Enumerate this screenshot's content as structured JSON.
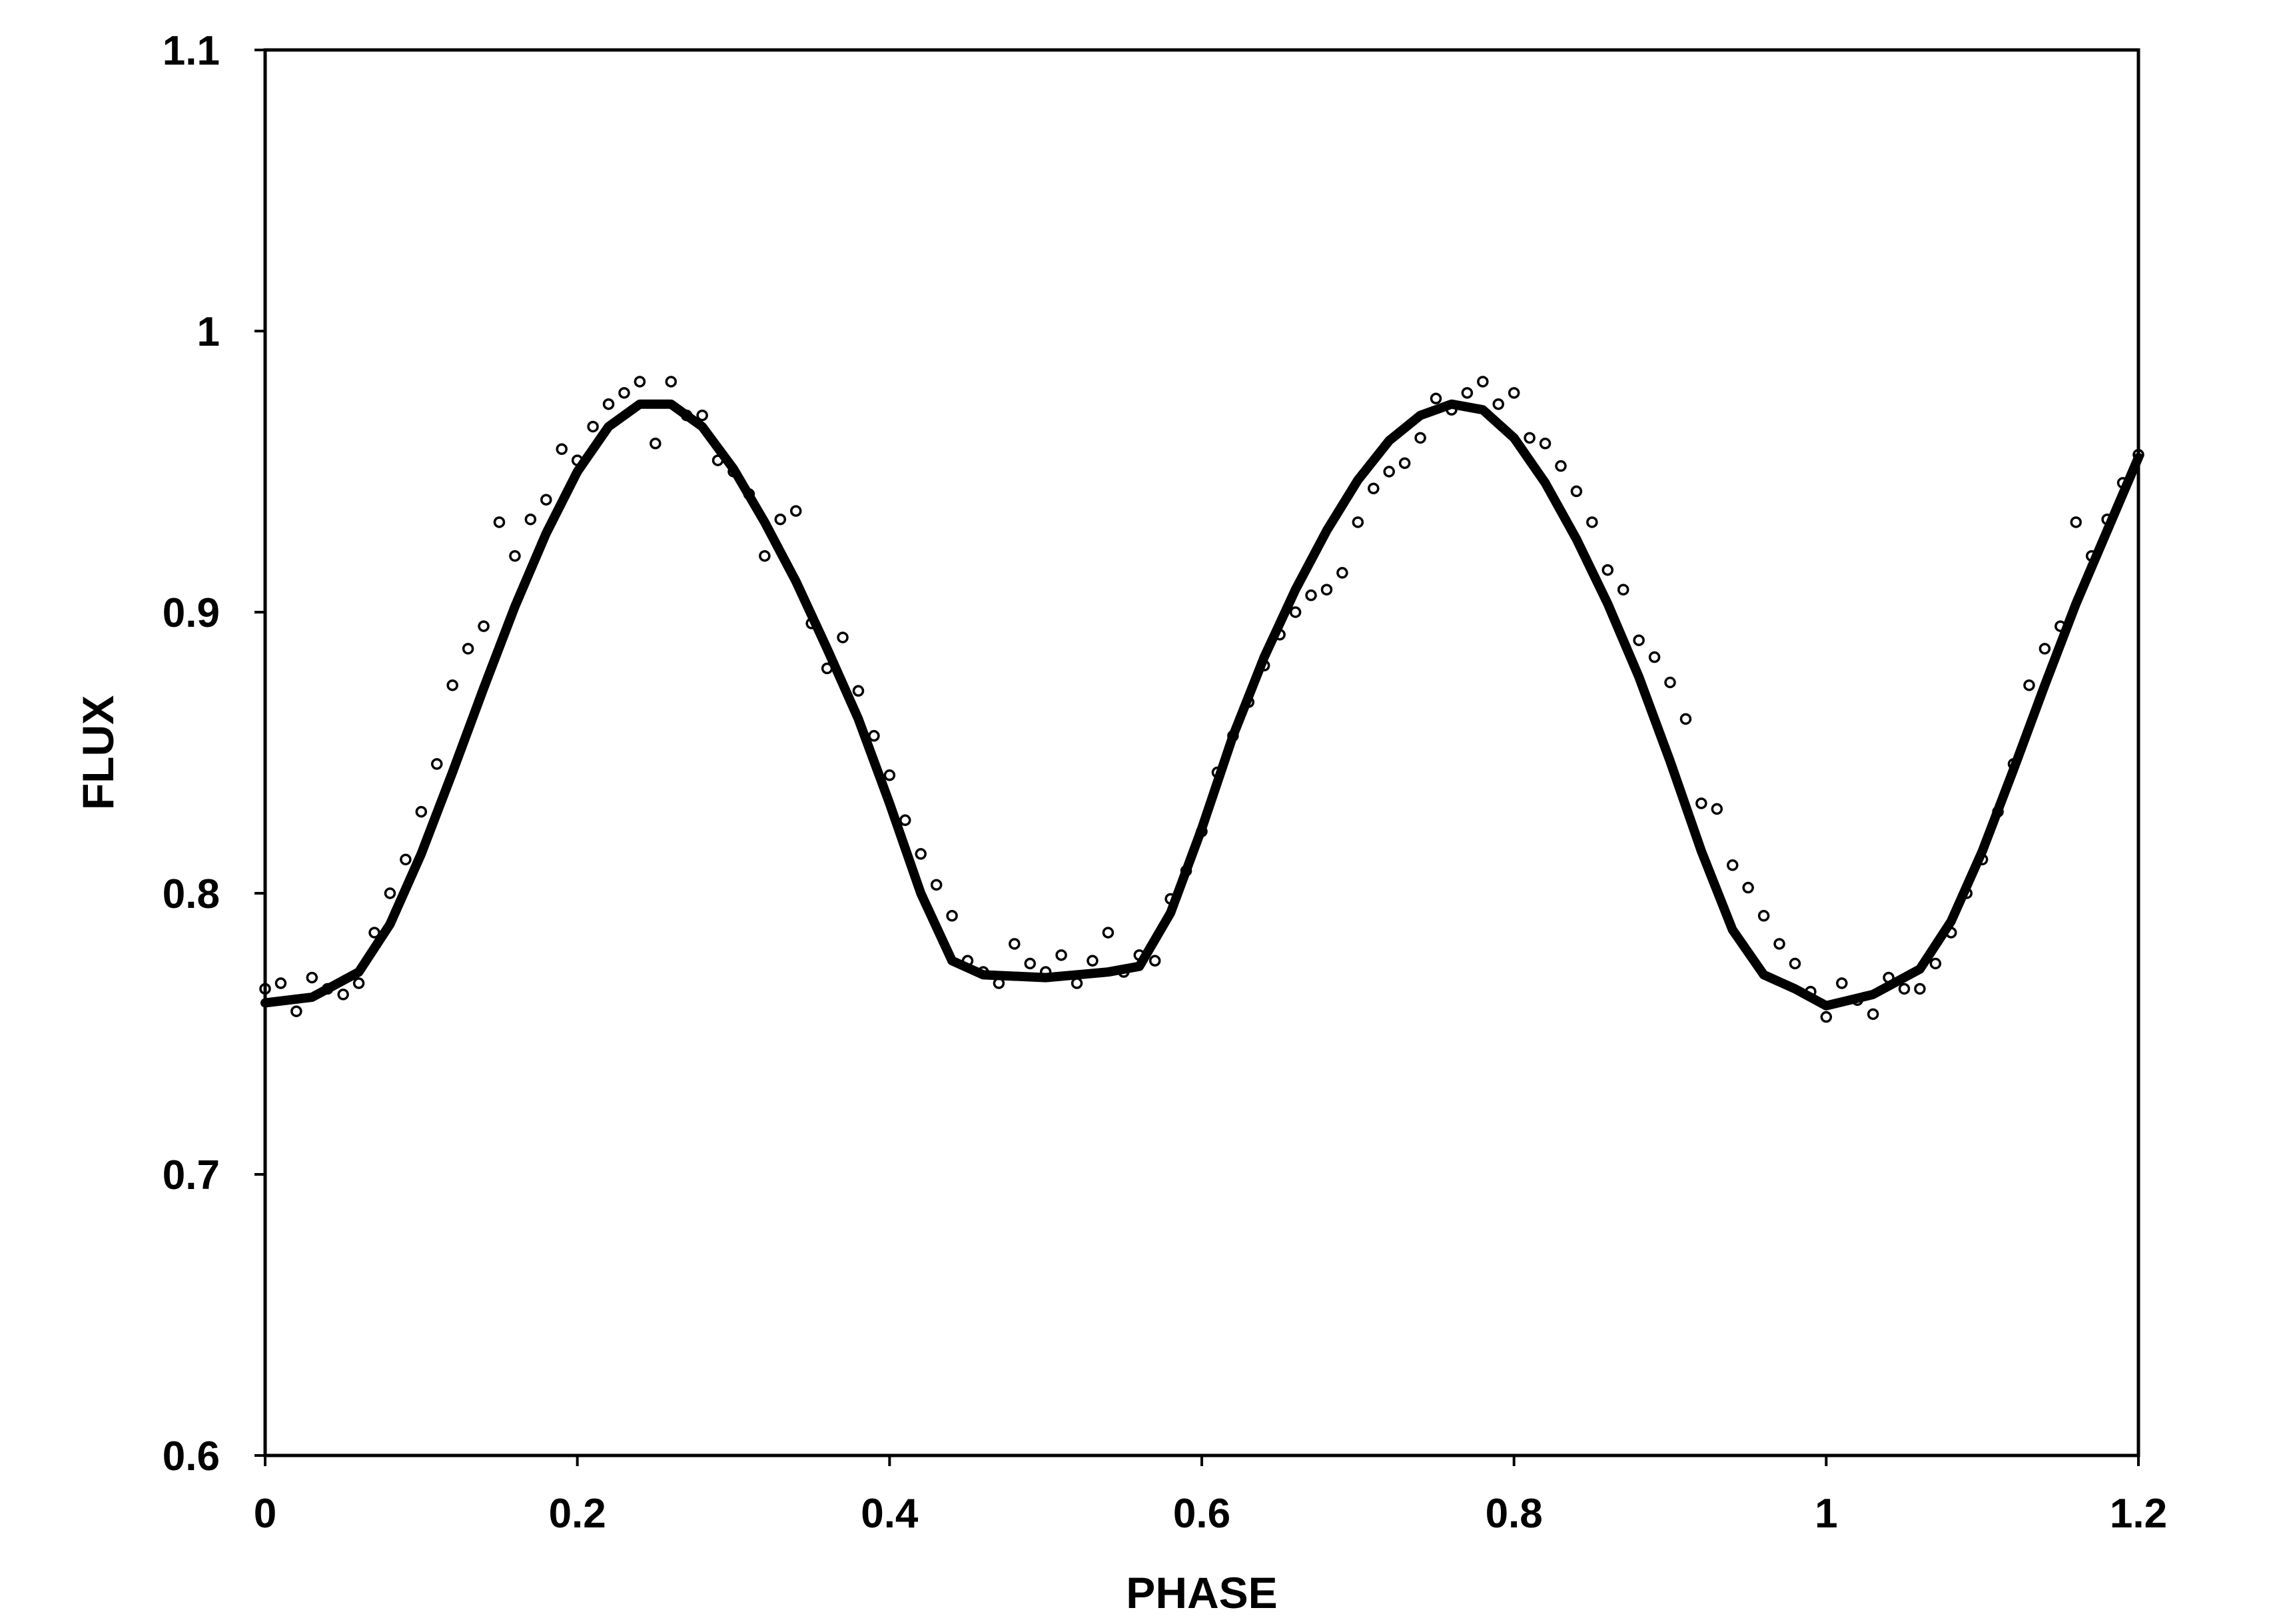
{
  "chart_data": {
    "type": "scatter",
    "title": "",
    "xlabel": "PHASE",
    "ylabel": "FLUX",
    "xlim": [
      0,
      1.2
    ],
    "ylim": [
      0.6,
      1.1
    ],
    "x_ticks": [
      0,
      0.2,
      0.4,
      0.6,
      0.8,
      1,
      1.2
    ],
    "x_tick_labels": [
      "0",
      "0.2",
      "0.4",
      "0.6",
      "0.8",
      "1",
      "1.2"
    ],
    "y_ticks": [
      0.6,
      0.7,
      0.8,
      0.9,
      1,
      1.1
    ],
    "y_tick_labels": [
      "0.6",
      "0.7",
      "0.8",
      "0.9",
      "1",
      "1.1"
    ],
    "grid": false,
    "legend": "none",
    "colors": {
      "marks": "#000000",
      "background": "#ffffff"
    },
    "series": [
      {
        "style": "open-circle markers",
        "x": [
          0.0,
          0.01,
          0.02,
          0.03,
          0.04,
          0.05,
          0.06,
          0.07,
          0.08,
          0.09,
          0.1,
          0.11,
          0.12,
          0.13,
          0.14,
          0.15,
          0.16,
          0.17,
          0.18,
          0.19,
          0.2,
          0.21,
          0.22,
          0.23,
          0.24,
          0.25,
          0.26,
          0.27,
          0.28,
          0.29,
          0.3,
          0.31,
          0.32,
          0.33,
          0.34,
          0.35,
          0.36,
          0.37,
          0.38,
          0.39,
          0.4,
          0.41,
          0.42,
          0.43,
          0.44,
          0.45,
          0.46,
          0.47,
          0.48,
          0.49,
          0.5,
          0.51,
          0.52,
          0.53,
          0.54,
          0.55,
          0.56,
          0.57,
          0.58,
          0.59,
          0.6,
          0.61,
          0.62,
          0.63,
          0.64,
          0.65,
          0.66,
          0.67,
          0.68,
          0.69,
          0.7,
          0.71,
          0.72,
          0.73,
          0.74,
          0.75,
          0.76,
          0.77,
          0.78,
          0.79,
          0.8,
          0.81,
          0.82,
          0.83,
          0.84,
          0.85,
          0.86,
          0.87,
          0.88,
          0.89,
          0.9,
          0.91,
          0.92,
          0.93,
          0.94,
          0.95,
          0.96,
          0.97,
          0.98,
          0.99,
          1.0,
          1.01,
          1.02,
          1.03,
          1.04,
          1.05,
          1.06,
          1.07,
          1.08,
          1.09,
          1.1,
          1.11,
          1.12,
          1.13,
          1.14,
          1.15,
          1.16,
          1.17,
          1.18,
          1.19,
          1.2
        ],
        "y": [
          0.766,
          0.768,
          0.758,
          0.77,
          0.766,
          0.764,
          0.768,
          0.786,
          0.8,
          0.812,
          0.829,
          0.846,
          0.874,
          0.887,
          0.895,
          0.932,
          0.92,
          0.933,
          0.94,
          0.958,
          0.954,
          0.966,
          0.974,
          0.978,
          0.982,
          0.96,
          0.982,
          0.97,
          0.97,
          0.954,
          0.95,
          0.942,
          0.92,
          0.933,
          0.936,
          0.896,
          0.88,
          0.891,
          0.872,
          0.856,
          0.842,
          0.826,
          0.814,
          0.803,
          0.792,
          0.776,
          0.772,
          0.768,
          0.782,
          0.775,
          0.772,
          0.778,
          0.768,
          0.776,
          0.786,
          0.772,
          0.778,
          0.776,
          0.798,
          0.808,
          0.822,
          0.843,
          0.856,
          0.868,
          0.881,
          0.892,
          0.9,
          0.906,
          0.908,
          0.914,
          0.932,
          0.944,
          0.95,
          0.953,
          0.962,
          0.976,
          0.972,
          0.978,
          0.982,
          0.974,
          0.978,
          0.962,
          0.96,
          0.952,
          0.943,
          0.932,
          0.915,
          0.908,
          0.89,
          0.884,
          0.875,
          0.862,
          0.832,
          0.83,
          0.81,
          0.802,
          0.792,
          0.782,
          0.775,
          0.765,
          0.756,
          0.768,
          0.762,
          0.757,
          0.77,
          0.766,
          0.766,
          0.775,
          0.786,
          0.8,
          0.812,
          0.829,
          0.846,
          0.874,
          0.887,
          0.895,
          0.932,
          0.92,
          0.933,
          0.946,
          0.956
        ]
      },
      {
        "style": "thick line",
        "x": [
          0.0,
          0.03,
          0.06,
          0.08,
          0.1,
          0.12,
          0.14,
          0.16,
          0.18,
          0.2,
          0.22,
          0.24,
          0.26,
          0.28,
          0.3,
          0.32,
          0.34,
          0.36,
          0.38,
          0.4,
          0.42,
          0.44,
          0.46,
          0.5,
          0.54,
          0.56,
          0.58,
          0.6,
          0.62,
          0.64,
          0.66,
          0.68,
          0.7,
          0.72,
          0.74,
          0.76,
          0.78,
          0.8,
          0.82,
          0.84,
          0.86,
          0.88,
          0.9,
          0.92,
          0.94,
          0.96,
          0.98,
          1.0,
          1.03,
          1.06,
          1.08,
          1.1,
          1.12,
          1.14,
          1.16,
          1.18,
          1.2
        ],
        "y": [
          0.761,
          0.763,
          0.772,
          0.789,
          0.814,
          0.843,
          0.873,
          0.902,
          0.928,
          0.95,
          0.966,
          0.974,
          0.974,
          0.966,
          0.951,
          0.932,
          0.911,
          0.887,
          0.862,
          0.832,
          0.8,
          0.776,
          0.771,
          0.77,
          0.772,
          0.774,
          0.793,
          0.823,
          0.856,
          0.884,
          0.908,
          0.929,
          0.947,
          0.961,
          0.97,
          0.974,
          0.972,
          0.962,
          0.946,
          0.926,
          0.903,
          0.877,
          0.847,
          0.815,
          0.787,
          0.771,
          0.766,
          0.76,
          0.764,
          0.773,
          0.79,
          0.815,
          0.844,
          0.874,
          0.903,
          0.929,
          0.955
        ]
      }
    ]
  }
}
